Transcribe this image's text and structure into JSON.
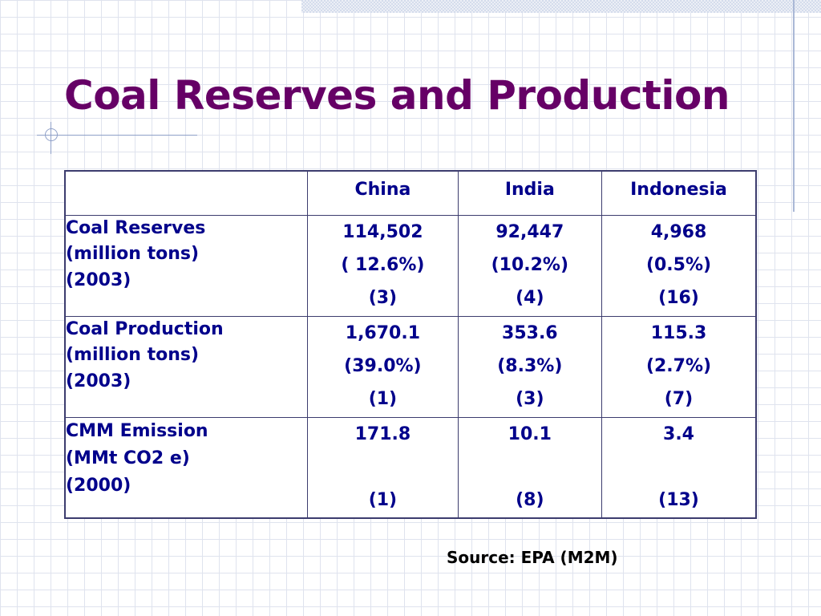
{
  "title": "Coal Reserves and Production",
  "table": {
    "columns": [
      "",
      "China",
      "India",
      "Indonesia"
    ],
    "rows": [
      {
        "label": [
          "Coal Reserves",
          "(million tons)",
          "(2003)"
        ],
        "china": [
          "114,502",
          "( 12.6%)",
          "(3)"
        ],
        "india": [
          "92,447",
          "(10.2%)",
          "(4)"
        ],
        "indonesia": [
          "4,968",
          "(0.5%)",
          "(16)"
        ]
      },
      {
        "label": [
          "Coal Production",
          "(million tons)",
          "(2003)"
        ],
        "china": [
          "1,670.1",
          "(39.0%)",
          "(1)"
        ],
        "india": [
          "353.6",
          "(8.3%)",
          "(3)"
        ],
        "indonesia": [
          "115.3",
          "(2.7%)",
          "(7)"
        ]
      },
      {
        "label": [
          "CMM Emission",
          "(MMt CO2 e)",
          "(2000)"
        ],
        "china": [
          "171.8",
          "",
          "(1)"
        ],
        "india": [
          "10.1",
          "",
          "(8)"
        ],
        "indonesia": [
          "3.4",
          "",
          "(13)"
        ]
      }
    ]
  },
  "source": "Source: EPA (M2M)"
}
